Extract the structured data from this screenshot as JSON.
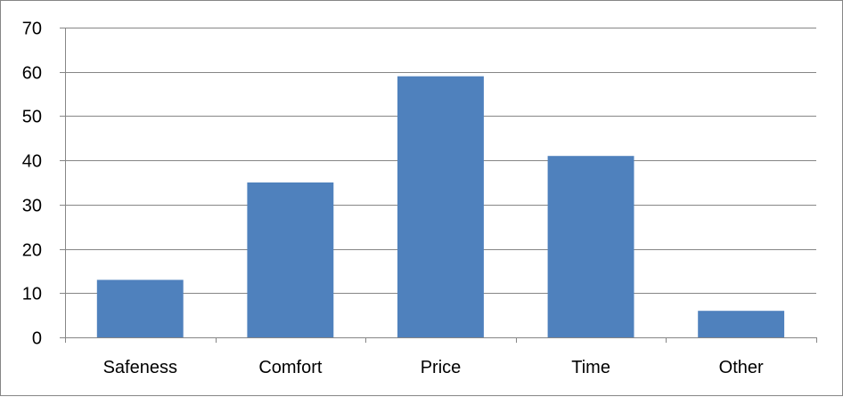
{
  "chart_data": {
    "type": "bar",
    "categories": [
      "Safeness",
      "Comfort",
      "Price",
      "Time",
      "Other"
    ],
    "values": [
      13,
      35,
      59,
      41,
      6
    ],
    "ylim": [
      0,
      70
    ],
    "yticks": [
      "0",
      "10",
      "20",
      "30",
      "40",
      "50",
      "60",
      "70"
    ],
    "grid": true,
    "legend": "none",
    "bar_color": "#4F81BD",
    "gridline_color": "#868686",
    "title": "",
    "xlabel": "",
    "ylabel": ""
  }
}
